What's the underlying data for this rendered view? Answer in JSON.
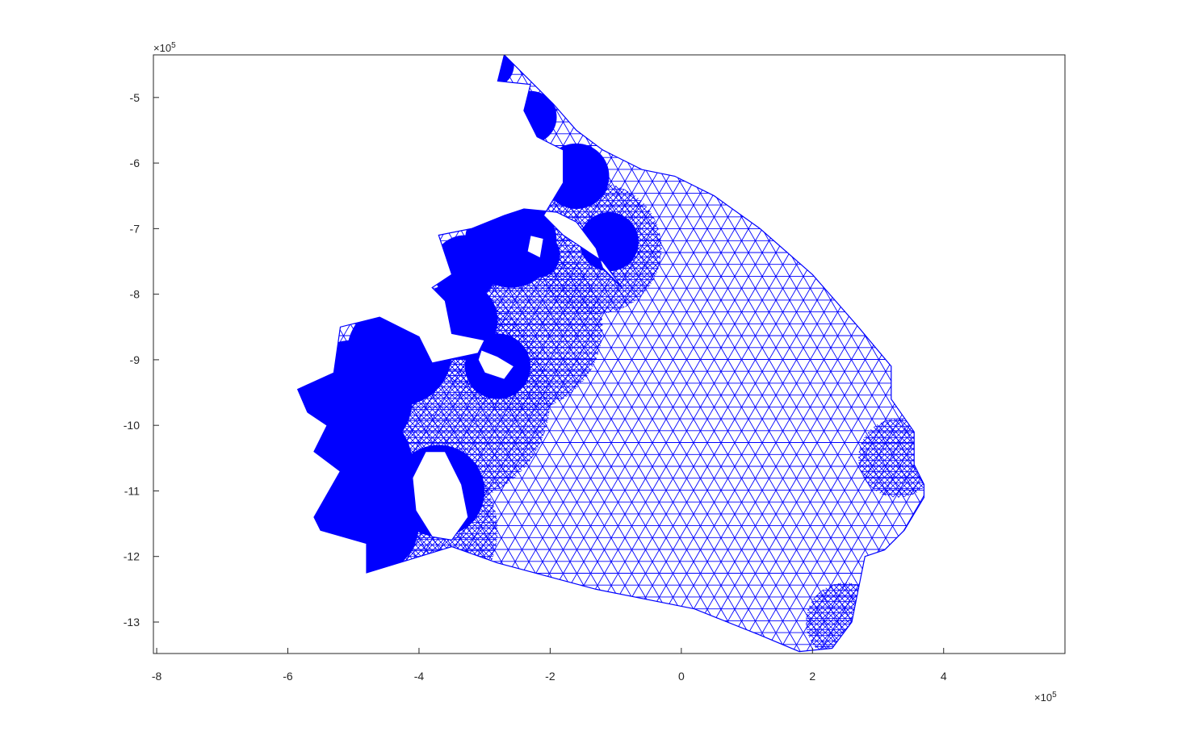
{
  "chart_data": {
    "type": "mesh",
    "title": "",
    "xlabel": "",
    "ylabel": "",
    "x_exponent_label": "×10",
    "x_exponent_power": "5",
    "y_exponent_label": "×10",
    "y_exponent_power": "5",
    "xlim": [
      -8.05,
      5.85
    ],
    "ylim": [
      -13.48,
      -4.35
    ],
    "xticks": [
      -8,
      -6,
      -4,
      -2,
      0,
      2,
      4
    ],
    "xtick_labels": [
      "-8",
      "-6",
      "-4",
      "-2",
      "0",
      "2",
      "4"
    ],
    "yticks": [
      -5,
      -6,
      -7,
      -8,
      -9,
      -10,
      -11,
      -12,
      -13
    ],
    "ytick_labels": [
      "-5",
      "-6",
      "-7",
      "-8",
      "-9",
      "-10",
      "-11",
      "-12",
      "-13"
    ],
    "mesh_color": "#0000ff",
    "units_scale": 100000,
    "outer_boundary": [
      [
        -2.7,
        -4.35
      ],
      [
        -2.25,
        -4.8
      ],
      [
        -1.95,
        -5.1
      ],
      [
        -1.6,
        -5.5
      ],
      [
        -1.2,
        -5.8
      ],
      [
        -0.6,
        -6.1
      ],
      [
        -0.1,
        -6.2
      ],
      [
        0.5,
        -6.5
      ],
      [
        1.2,
        -7.0
      ],
      [
        2.0,
        -7.7
      ],
      [
        2.7,
        -8.5
      ],
      [
        3.2,
        -9.1
      ],
      [
        3.2,
        -9.6
      ],
      [
        3.55,
        -10.1
      ],
      [
        3.55,
        -10.6
      ],
      [
        3.7,
        -10.9
      ],
      [
        3.7,
        -11.1
      ],
      [
        3.4,
        -11.6
      ],
      [
        3.1,
        -11.9
      ],
      [
        2.8,
        -12.0
      ],
      [
        2.7,
        -12.5
      ],
      [
        2.6,
        -13.0
      ],
      [
        2.3,
        -13.4
      ],
      [
        1.8,
        -13.45
      ],
      [
        1.2,
        -13.2
      ],
      [
        0.2,
        -12.8
      ],
      [
        -1.3,
        -12.5
      ],
      [
        -2.8,
        -12.1
      ],
      [
        -3.5,
        -11.85
      ],
      [
        -4.8,
        -12.25
      ],
      [
        -4.8,
        -11.8
      ],
      [
        -5.5,
        -11.6
      ],
      [
        -5.6,
        -11.4
      ],
      [
        -5.2,
        -10.7
      ],
      [
        -5.6,
        -10.4
      ],
      [
        -5.4,
        -10.0
      ],
      [
        -5.7,
        -9.8
      ],
      [
        -5.85,
        -9.45
      ],
      [
        -5.3,
        -9.2
      ],
      [
        -5.2,
        -8.5
      ],
      [
        -4.6,
        -8.35
      ],
      [
        -4.0,
        -8.65
      ],
      [
        -3.8,
        -9.05
      ],
      [
        -3.1,
        -8.9
      ],
      [
        -3.0,
        -8.7
      ],
      [
        -3.5,
        -8.6
      ],
      [
        -3.6,
        -8.1
      ],
      [
        -3.8,
        -7.9
      ],
      [
        -3.5,
        -7.7
      ],
      [
        -3.7,
        -7.1
      ],
      [
        -3.2,
        -7.0
      ],
      [
        -2.7,
        -6.8
      ],
      [
        -2.4,
        -6.7
      ],
      [
        -1.9,
        -6.75
      ],
      [
        -1.6,
        -6.9
      ],
      [
        -1.3,
        -7.3
      ],
      [
        -1.2,
        -7.6
      ],
      [
        -0.9,
        -7.9
      ],
      [
        -1.2,
        -7.5
      ],
      [
        -1.8,
        -7.1
      ],
      [
        -2.1,
        -6.8
      ],
      [
        -1.8,
        -6.3
      ],
      [
        -1.8,
        -5.8
      ],
      [
        -2.2,
        -5.6
      ],
      [
        -2.4,
        -5.2
      ],
      [
        -2.3,
        -4.8
      ],
      [
        -2.8,
        -4.75
      ],
      [
        -2.7,
        -4.35
      ]
    ],
    "holes": [
      [
        [
          -3.9,
          -10.4
        ],
        [
          -3.6,
          -10.4
        ],
        [
          -3.35,
          -10.9
        ],
        [
          -3.25,
          -11.4
        ],
        [
          -3.5,
          -11.75
        ],
        [
          -3.8,
          -11.7
        ],
        [
          -4.05,
          -11.3
        ],
        [
          -4.1,
          -10.8
        ]
      ],
      [
        [
          -3.05,
          -8.85
        ],
        [
          -2.8,
          -8.95
        ],
        [
          -2.55,
          -9.1
        ],
        [
          -2.7,
          -9.3
        ],
        [
          -3.0,
          -9.2
        ],
        [
          -3.1,
          -9.0
        ]
      ],
      [
        [
          -2.3,
          -7.1
        ],
        [
          -2.1,
          -7.15
        ],
        [
          -2.15,
          -7.45
        ],
        [
          -2.35,
          -7.35
        ]
      ]
    ],
    "annotations": []
  }
}
